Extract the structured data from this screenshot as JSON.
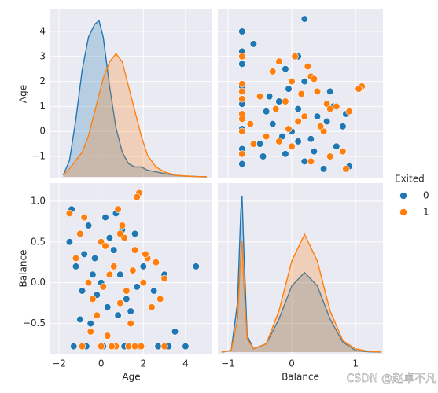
{
  "chart_data": [
    {
      "type": "kde",
      "ylabel": "Age",
      "ylim": [
        -1.88,
        4.88
      ],
      "yticks": [
        {
          "value": -1,
          "label": "−1"
        },
        0,
        1,
        2,
        3,
        4
      ],
      "density_lim": [
        0,
        1
      ],
      "series": [
        {
          "name": "0",
          "color": "#1f77b4",
          "x": [
            -1.8,
            -1.5,
            -1.2,
            -0.9,
            -0.6,
            -0.3,
            -0.1,
            0.1,
            0.4,
            0.7,
            1.0,
            1.3,
            1.6,
            1.9,
            2.2,
            2.6,
            3.0,
            3.5,
            4.0,
            4.5,
            5.0
          ],
          "values": [
            0.01,
            0.1,
            0.35,
            0.65,
            0.85,
            0.93,
            0.95,
            0.85,
            0.55,
            0.3,
            0.15,
            0.08,
            0.06,
            0.06,
            0.04,
            0.03,
            0.02,
            0.01,
            0.005,
            0.002,
            0
          ]
        },
        {
          "name": "1",
          "color": "#ff7f0e",
          "x": [
            -1.8,
            -1.5,
            -1.2,
            -0.9,
            -0.6,
            -0.3,
            -0.1,
            0.1,
            0.4,
            0.7,
            1.0,
            1.3,
            1.6,
            1.9,
            2.2,
            2.6,
            3.0,
            3.5,
            4.0,
            4.5,
            5.0
          ],
          "values": [
            0.01,
            0.05,
            0.1,
            0.15,
            0.25,
            0.4,
            0.5,
            0.6,
            0.7,
            0.75,
            0.7,
            0.55,
            0.4,
            0.25,
            0.13,
            0.06,
            0.03,
            0.01,
            0.005,
            0.002,
            0
          ]
        }
      ]
    },
    {
      "type": "scatter",
      "series": [
        {
          "name": "0",
          "color": "#1f77b4",
          "x": [
            0.5,
            0.2,
            -0.1,
            0.7,
            0.3,
            0,
            -0.3,
            0.4,
            0.1,
            -0.2,
            0.6,
            0.2,
            -0.1,
            0.1,
            -0.45,
            -0.5,
            0.8,
            -0.4,
            -0.35,
            0.3,
            -0.6,
            0.2,
            -0.78,
            -0.78,
            -0.78,
            -0.78,
            -0.78,
            -0.78,
            -0.78,
            -0.78,
            0.9,
            0.35,
            -0.15,
            0.55,
            0.65,
            -0.05,
            -0.3,
            0.1,
            0.85,
            -0.78
          ],
          "values": [
            -1.5,
            -1.2,
            -0.9,
            -0.6,
            -0.3,
            0,
            0.3,
            0.6,
            0.9,
            1.2,
            1.6,
            2.0,
            2.5,
            3.0,
            -1.0,
            -0.5,
            0.2,
            0.8,
            1.4,
            2.2,
            3.5,
            4.5,
            -1.3,
            -0.7,
            0.1,
            0.5,
            1.1,
            1.8,
            2.7,
            4.0,
            -1.4,
            -0.8,
            -0.2,
            0.4,
            1.0,
            1.7,
            2.4,
            -0.4,
            0.7,
            3.2
          ]
        },
        {
          "name": "1",
          "color": "#ff7f0e",
          "x": [
            0.3,
            0.8,
            -0.2,
            0.5,
            0.1,
            0.9,
            -0.1,
            0.4,
            0.0,
            -0.3,
            0.6,
            -0.4,
            0.2,
            0.7,
            -0.5,
            1.1,
            0.3,
            -0.2,
            0.0,
            0.45,
            -0.25,
            0.15,
            1.05,
            0.05,
            0.85,
            -0.6,
            -0.65,
            0.55,
            0.25,
            -0.78,
            -0.78,
            -0.78,
            -0.78,
            -0.78,
            -0.78,
            -0.78,
            0.35,
            -0.05,
            0.6,
            -0.78
          ],
          "values": [
            -1.2,
            -0.8,
            -0.4,
            0,
            0.4,
            0.8,
            1.2,
            1.6,
            2.0,
            2.4,
            -1.0,
            -0.2,
            0.6,
            1.0,
            1.4,
            1.8,
            2.2,
            2.8,
            -0.6,
            0.2,
            0.9,
            1.5,
            1.7,
            3.0,
            -1.5,
            -0.5,
            0.3,
            1.1,
            2.6,
            0.0,
            0.7,
            1.3,
            1.9,
            0.5,
            -0.9,
            1.6,
            2.1,
            0.1,
            0.9,
            3.0
          ]
        }
      ]
    },
    {
      "type": "scatter",
      "xlabel": "Age",
      "ylabel": "Balance",
      "xlim": [
        -2.41,
        5.27
      ],
      "xticks": [
        {
          "value": -2,
          "label": "−2"
        },
        0,
        2,
        4
      ],
      "ylim": [
        -0.87,
        1.22
      ],
      "yticks": [
        {
          "value": -0.5,
          "label": "−0.5"
        },
        {
          "value": 0,
          "label": "0.0"
        },
        0.5,
        {
          "value": 1,
          "label": "1.0"
        }
      ],
      "series": [
        {
          "name": "0",
          "color": "#1f77b4",
          "x": [
            -1.5,
            -1.2,
            -0.9,
            -0.6,
            -0.3,
            0,
            0.3,
            0.6,
            0.9,
            1.2,
            1.6,
            2.0,
            2.5,
            3.0,
            -1.0,
            -0.5,
            0.2,
            0.8,
            1.4,
            2.2,
            3.5,
            4.5,
            -1.3,
            -0.7,
            0.1,
            0.5,
            1.1,
            1.8,
            2.7,
            4.0,
            -1.4,
            -0.8,
            -0.2,
            0.4,
            1.0,
            1.7,
            2.4,
            -0.4,
            0.7,
            3.2
          ],
          "values": [
            0.5,
            0.2,
            -0.1,
            0.7,
            0.3,
            0,
            -0.3,
            0.4,
            0.1,
            -0.2,
            0.6,
            0.2,
            -0.1,
            0.1,
            -0.45,
            -0.5,
            0.8,
            -0.4,
            -0.35,
            0.3,
            -0.6,
            0.2,
            -0.78,
            -0.78,
            -0.78,
            -0.78,
            -0.78,
            -0.78,
            -0.78,
            -0.78,
            0.9,
            0.35,
            -0.15,
            0.55,
            0.65,
            -0.05,
            -0.3,
            0.1,
            0.85,
            -0.78
          ]
        },
        {
          "name": "1",
          "color": "#ff7f0e",
          "x": [
            -1.2,
            -0.8,
            -0.4,
            0,
            0.4,
            0.8,
            1.2,
            1.6,
            2.0,
            2.4,
            -1.0,
            -0.2,
            0.6,
            1.0,
            1.4,
            1.8,
            2.2,
            2.8,
            -0.6,
            0.2,
            0.9,
            1.5,
            1.7,
            3.0,
            -1.5,
            -0.5,
            0.3,
            1.1,
            2.6,
            0.0,
            0.7,
            1.3,
            1.9,
            0.5,
            -0.9,
            1.6,
            2.1,
            0.1,
            0.9,
            3.0
          ],
          "values": [
            0.3,
            0.8,
            -0.2,
            0.5,
            0.1,
            0.9,
            -0.1,
            0.4,
            0.0,
            -0.3,
            0.6,
            -0.4,
            0.2,
            0.7,
            -0.5,
            1.1,
            0.3,
            -0.2,
            0.0,
            0.45,
            -0.25,
            0.15,
            1.05,
            0.05,
            0.85,
            -0.6,
            -0.65,
            0.55,
            0.25,
            -0.78,
            -0.78,
            -0.78,
            -0.78,
            -0.78,
            -0.78,
            -0.78,
            0.35,
            -0.05,
            0.6,
            -0.78
          ]
        }
      ]
    },
    {
      "type": "kde",
      "xlabel": "Balance",
      "xlim": [
        -1.16,
        1.43
      ],
      "xticks": [
        {
          "value": -1,
          "label": "−1"
        },
        0,
        1
      ],
      "density_lim": [
        0,
        1
      ],
      "series": [
        {
          "name": "0",
          "color": "#1f77b4",
          "x": [
            -1.1,
            -0.95,
            -0.85,
            -0.8,
            -0.78,
            -0.75,
            -0.7,
            -0.6,
            -0.4,
            -0.2,
            0,
            0.2,
            0.4,
            0.6,
            0.8,
            1.0,
            1.2,
            1.4
          ],
          "values": [
            0,
            0.01,
            0.3,
            0.85,
            0.94,
            0.6,
            0.1,
            0.02,
            0.05,
            0.2,
            0.4,
            0.48,
            0.4,
            0.2,
            0.06,
            0.01,
            0.002,
            0
          ]
        },
        {
          "name": "1",
          "color": "#ff7f0e",
          "x": [
            -1.1,
            -0.95,
            -0.85,
            -0.8,
            -0.78,
            -0.75,
            -0.7,
            -0.6,
            -0.4,
            -0.2,
            0,
            0.2,
            0.4,
            0.6,
            0.8,
            1.0,
            1.2,
            1.4
          ],
          "values": [
            0,
            0.01,
            0.2,
            0.6,
            0.67,
            0.4,
            0.08,
            0.02,
            0.05,
            0.25,
            0.55,
            0.71,
            0.55,
            0.25,
            0.07,
            0.02,
            0.005,
            0
          ]
        }
      ]
    }
  ],
  "legend": {
    "title": "Exited"
  },
  "watermark": "CSDN @赵卓不凡"
}
